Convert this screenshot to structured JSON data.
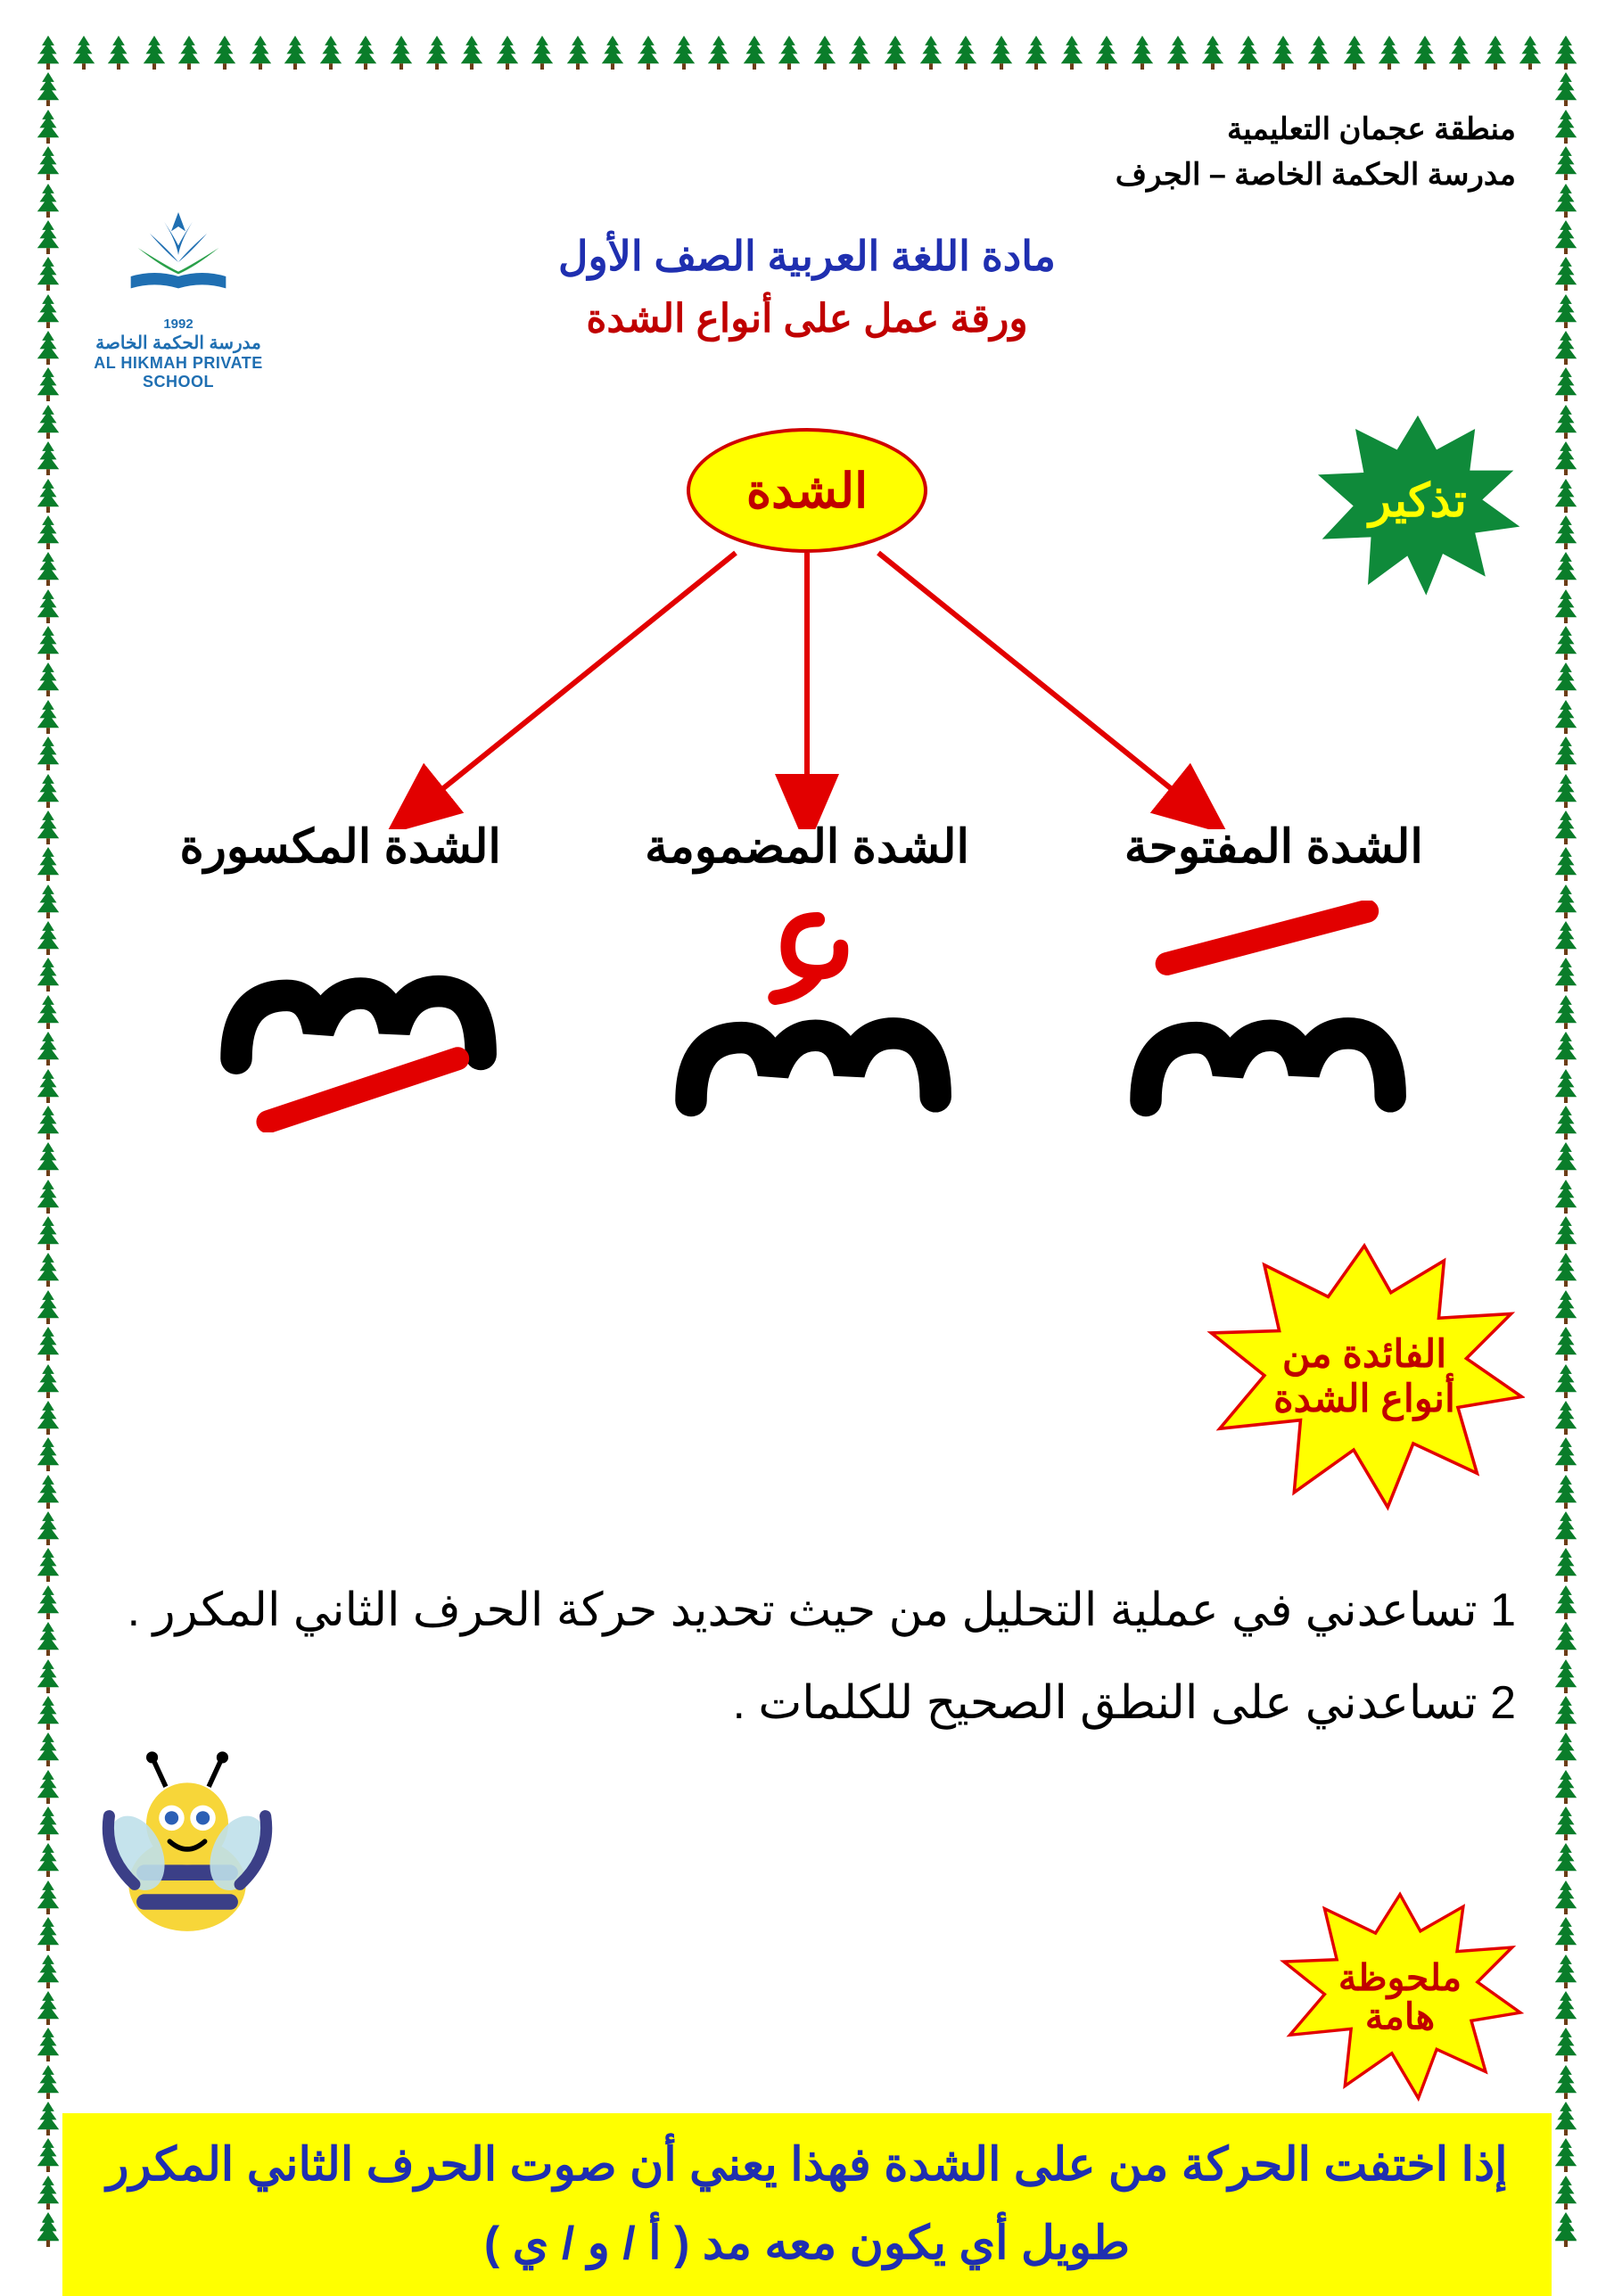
{
  "header": {
    "line1": "منطقة عجمان التعليمية",
    "line2": "مدرسة الحكمة الخاصة – الجرف"
  },
  "logo": {
    "year": "1992",
    "name_ar": "مدرسة الحكمة الخاصة",
    "name_en": "AL HIKMAH PRIVATE SCHOOL",
    "accent_color": "#1f6fb2"
  },
  "title": {
    "line1": "مادة اللغة العربية الصف الأول",
    "line2": "ورقة عمل على أنواع الشدة",
    "color1": "#1f2fb0",
    "color2": "#c00000"
  },
  "reminder_badge": {
    "text": "تذكير",
    "fill": "#0f8a3a",
    "text_color": "#ffff00"
  },
  "central": {
    "label": "الشدة",
    "fill": "#ffff00",
    "stroke": "#d00000",
    "text_color": "#c00000"
  },
  "arrows": {
    "color": "#e20000",
    "stroke_width": 6
  },
  "branches": [
    {
      "label": "الشدة المفتوحة",
      "mark": "fatha"
    },
    {
      "label": "الشدة المضمومة",
      "mark": "damma"
    },
    {
      "label": "الشدة المكسورة",
      "mark": "kasra"
    }
  ],
  "glyph": {
    "stroke": "#000000",
    "mark_red": "#e20000"
  },
  "benefit_badge": {
    "line1": "الفائدة من",
    "line2": "أنواع الشدة",
    "fill": "#ffff00",
    "stroke": "#e20000"
  },
  "benefits": {
    "item1": "1 تساعدني في عملية التحليل من حيث تحديد حركة الحرف الثاني المكرر .",
    "item2": "2 تساعدني على النطق الصحيح للكلمات ."
  },
  "note_badge": {
    "line1": "ملحوظة",
    "line2": "هامة",
    "fill": "#ffff00",
    "stroke": "#e20000"
  },
  "highlight": {
    "text": "إذا اختفت الحركة من على الشدة فهذا يعني أن صوت الحرف الثاني المكرر طويل أي يكون معه مد ( أ / و / ي )",
    "bg": "#ffff00",
    "color": "#1f2fb0"
  },
  "border": {
    "tree_color": "#0a7d2a",
    "count_h": 44,
    "count_v": 60
  }
}
